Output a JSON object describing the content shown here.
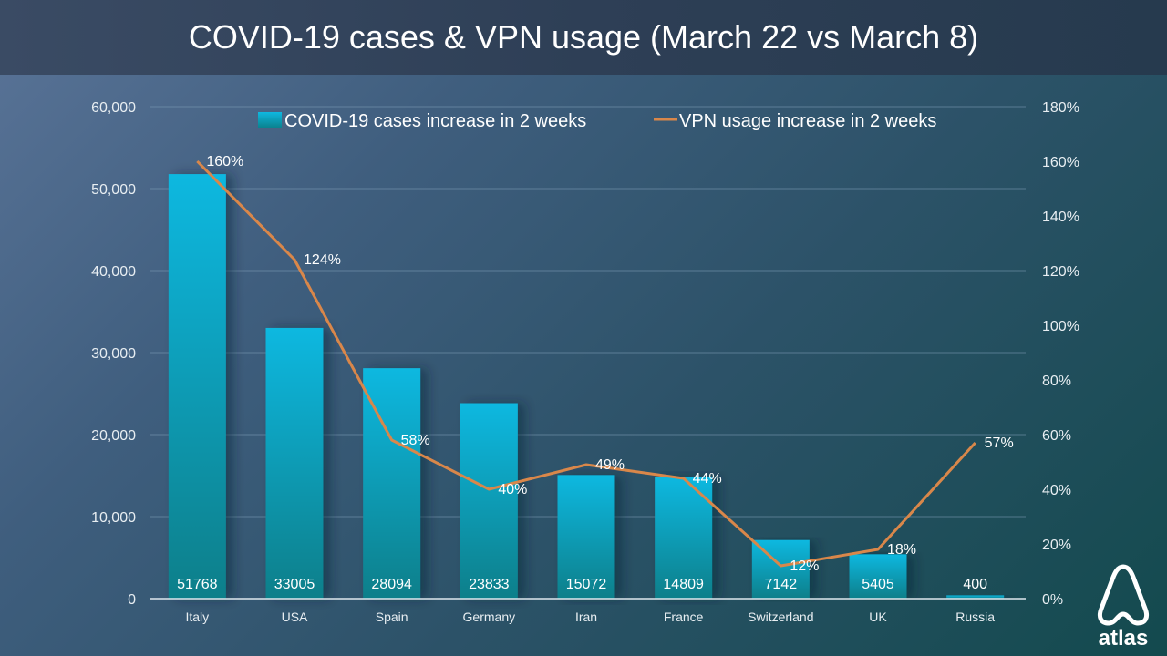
{
  "title": "COVID-19 cases & VPN usage (March 22 vs March 8)",
  "brand": {
    "name": "atlas",
    "icon": "atlas-logo-icon"
  },
  "colors": {
    "bar_top": "#0fb8e0",
    "bar_bottom": "#0a7f8a",
    "line": "#d9874a",
    "grid": "#7f9fb8"
  },
  "chart_data": {
    "type": "bar",
    "title": "COVID-19 cases & VPN usage (March 22 vs March 8)",
    "categories": [
      "Italy",
      "USA",
      "Spain",
      "Germany",
      "Iran",
      "France",
      "Switzerland",
      "UK",
      "Russia"
    ],
    "series": [
      {
        "name": "COVID-19 cases increase in 2 weeks",
        "type": "bar",
        "axis": "left",
        "values": [
          51768,
          33005,
          28094,
          23833,
          15072,
          14809,
          7142,
          5405,
          400
        ],
        "labels": [
          "51768",
          "33005",
          "28094",
          "23833",
          "15072",
          "14809",
          "7142",
          "5405",
          "400"
        ]
      },
      {
        "name": "VPN usage increase in 2 weeks",
        "type": "line",
        "axis": "right",
        "values": [
          160,
          124,
          58,
          40,
          49,
          44,
          12,
          18,
          57
        ],
        "labels": [
          "160%",
          "124%",
          "58%",
          "40%",
          "49%",
          "44%",
          "12%",
          "18%",
          "57%"
        ]
      }
    ],
    "y_left": {
      "min": 0,
      "max": 60000,
      "step": 10000,
      "ticks": [
        "0",
        "10,000",
        "20,000",
        "30,000",
        "40,000",
        "50,000",
        "60,000"
      ]
    },
    "y_right": {
      "min": 0,
      "max": 180,
      "step": 20,
      "ticks": [
        "0%",
        "20%",
        "40%",
        "60%",
        "80%",
        "100%",
        "120%",
        "140%",
        "160%",
        "180%"
      ]
    },
    "xlabel": "",
    "ylabel": "",
    "grid": true,
    "legend": "top-center"
  }
}
